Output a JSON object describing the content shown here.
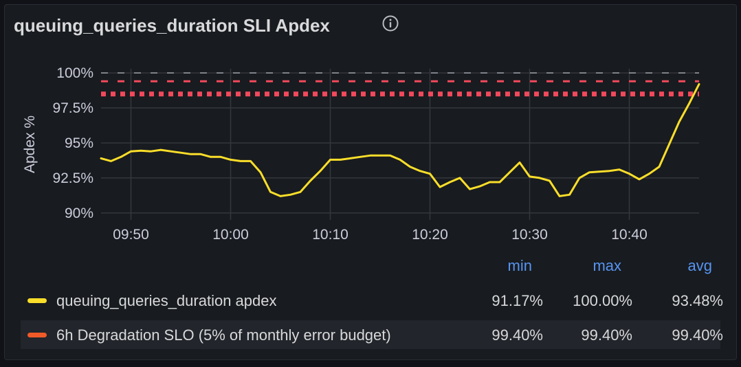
{
  "panel": {
    "title": "queuing_queries_duration SLI Apdex",
    "info_icon": "info-circle-icon"
  },
  "chart_data": {
    "type": "line",
    "ylabel": "Apdex %",
    "ylim": [
      89.5,
      100.3
    ],
    "yticks": [
      100,
      97.5,
      95,
      92.5,
      90
    ],
    "ytick_labels": [
      "100%",
      "97.5%",
      "95%",
      "92.5%",
      "90%"
    ],
    "xlim": [
      "09:47",
      "10:47"
    ],
    "xticks": [
      "09:50",
      "10:00",
      "10:10",
      "10:20",
      "10:30",
      "10:40"
    ],
    "grid": true,
    "series": [
      {
        "name": "queuing_queries_duration apdex",
        "color": "#fade2a",
        "style": "solid",
        "x": [
          "09:47",
          "09:48",
          "09:49",
          "09:50",
          "09:51",
          "09:52",
          "09:53",
          "09:54",
          "09:55",
          "09:56",
          "09:57",
          "09:58",
          "09:59",
          "10:00",
          "10:01",
          "10:02",
          "10:03",
          "10:04",
          "10:05",
          "10:06",
          "10:07",
          "10:08",
          "10:09",
          "10:10",
          "10:11",
          "10:12",
          "10:13",
          "10:14",
          "10:15",
          "10:16",
          "10:17",
          "10:18",
          "10:19",
          "10:20",
          "10:21",
          "10:22",
          "10:23",
          "10:24",
          "10:25",
          "10:26",
          "10:27",
          "10:28",
          "10:29",
          "10:30",
          "10:31",
          "10:32",
          "10:33",
          "10:34",
          "10:35",
          "10:36",
          "10:37",
          "10:38",
          "10:39",
          "10:40",
          "10:41",
          "10:42",
          "10:43",
          "10:44",
          "10:45",
          "10:46",
          "10:47"
        ],
        "values": [
          93.9,
          93.7,
          94.0,
          94.4,
          94.45,
          94.4,
          94.5,
          94.4,
          94.3,
          94.2,
          94.2,
          94.0,
          94.0,
          93.8,
          93.7,
          93.7,
          92.9,
          91.5,
          91.2,
          91.3,
          91.5,
          92.3,
          93.0,
          93.8,
          93.8,
          93.9,
          94.0,
          94.1,
          94.1,
          94.1,
          93.8,
          93.3,
          93.0,
          92.8,
          91.85,
          92.2,
          92.5,
          91.7,
          91.9,
          92.2,
          92.2,
          92.9,
          93.6,
          92.6,
          92.5,
          92.3,
          91.2,
          91.3,
          92.5,
          92.9,
          92.95,
          93.0,
          93.1,
          92.8,
          92.4,
          92.8,
          93.3,
          94.9,
          96.5,
          97.8,
          99.2
        ]
      },
      {
        "name": "6h Degradation SLO (5% of monthly error budget)",
        "color": "#f2495c",
        "style": "dashed",
        "x": [
          "09:47",
          "10:47"
        ],
        "values": [
          99.4,
          99.4
        ]
      },
      {
        "name": "",
        "color": "#f2495c",
        "style": "dotted",
        "x": [
          "09:47",
          "10:47"
        ],
        "values": [
          98.5,
          98.5
        ]
      },
      {
        "name": "",
        "color": "#9fa2a8",
        "style": "dashed",
        "x": [
          "09:47",
          "10:47"
        ],
        "values": [
          100,
          100
        ]
      }
    ]
  },
  "legend": {
    "headers": {
      "min": "min",
      "max": "max",
      "avg": "avg"
    },
    "rows": [
      {
        "name": "queuing_queries_duration apdex",
        "color": "#fade2a",
        "min": "91.17%",
        "max": "100.00%",
        "avg": "93.48%"
      },
      {
        "name": "6h Degradation SLO (5% of monthly error budget)",
        "color": "#f05a28",
        "min": "99.40%",
        "max": "99.40%",
        "avg": "99.40%"
      }
    ]
  }
}
